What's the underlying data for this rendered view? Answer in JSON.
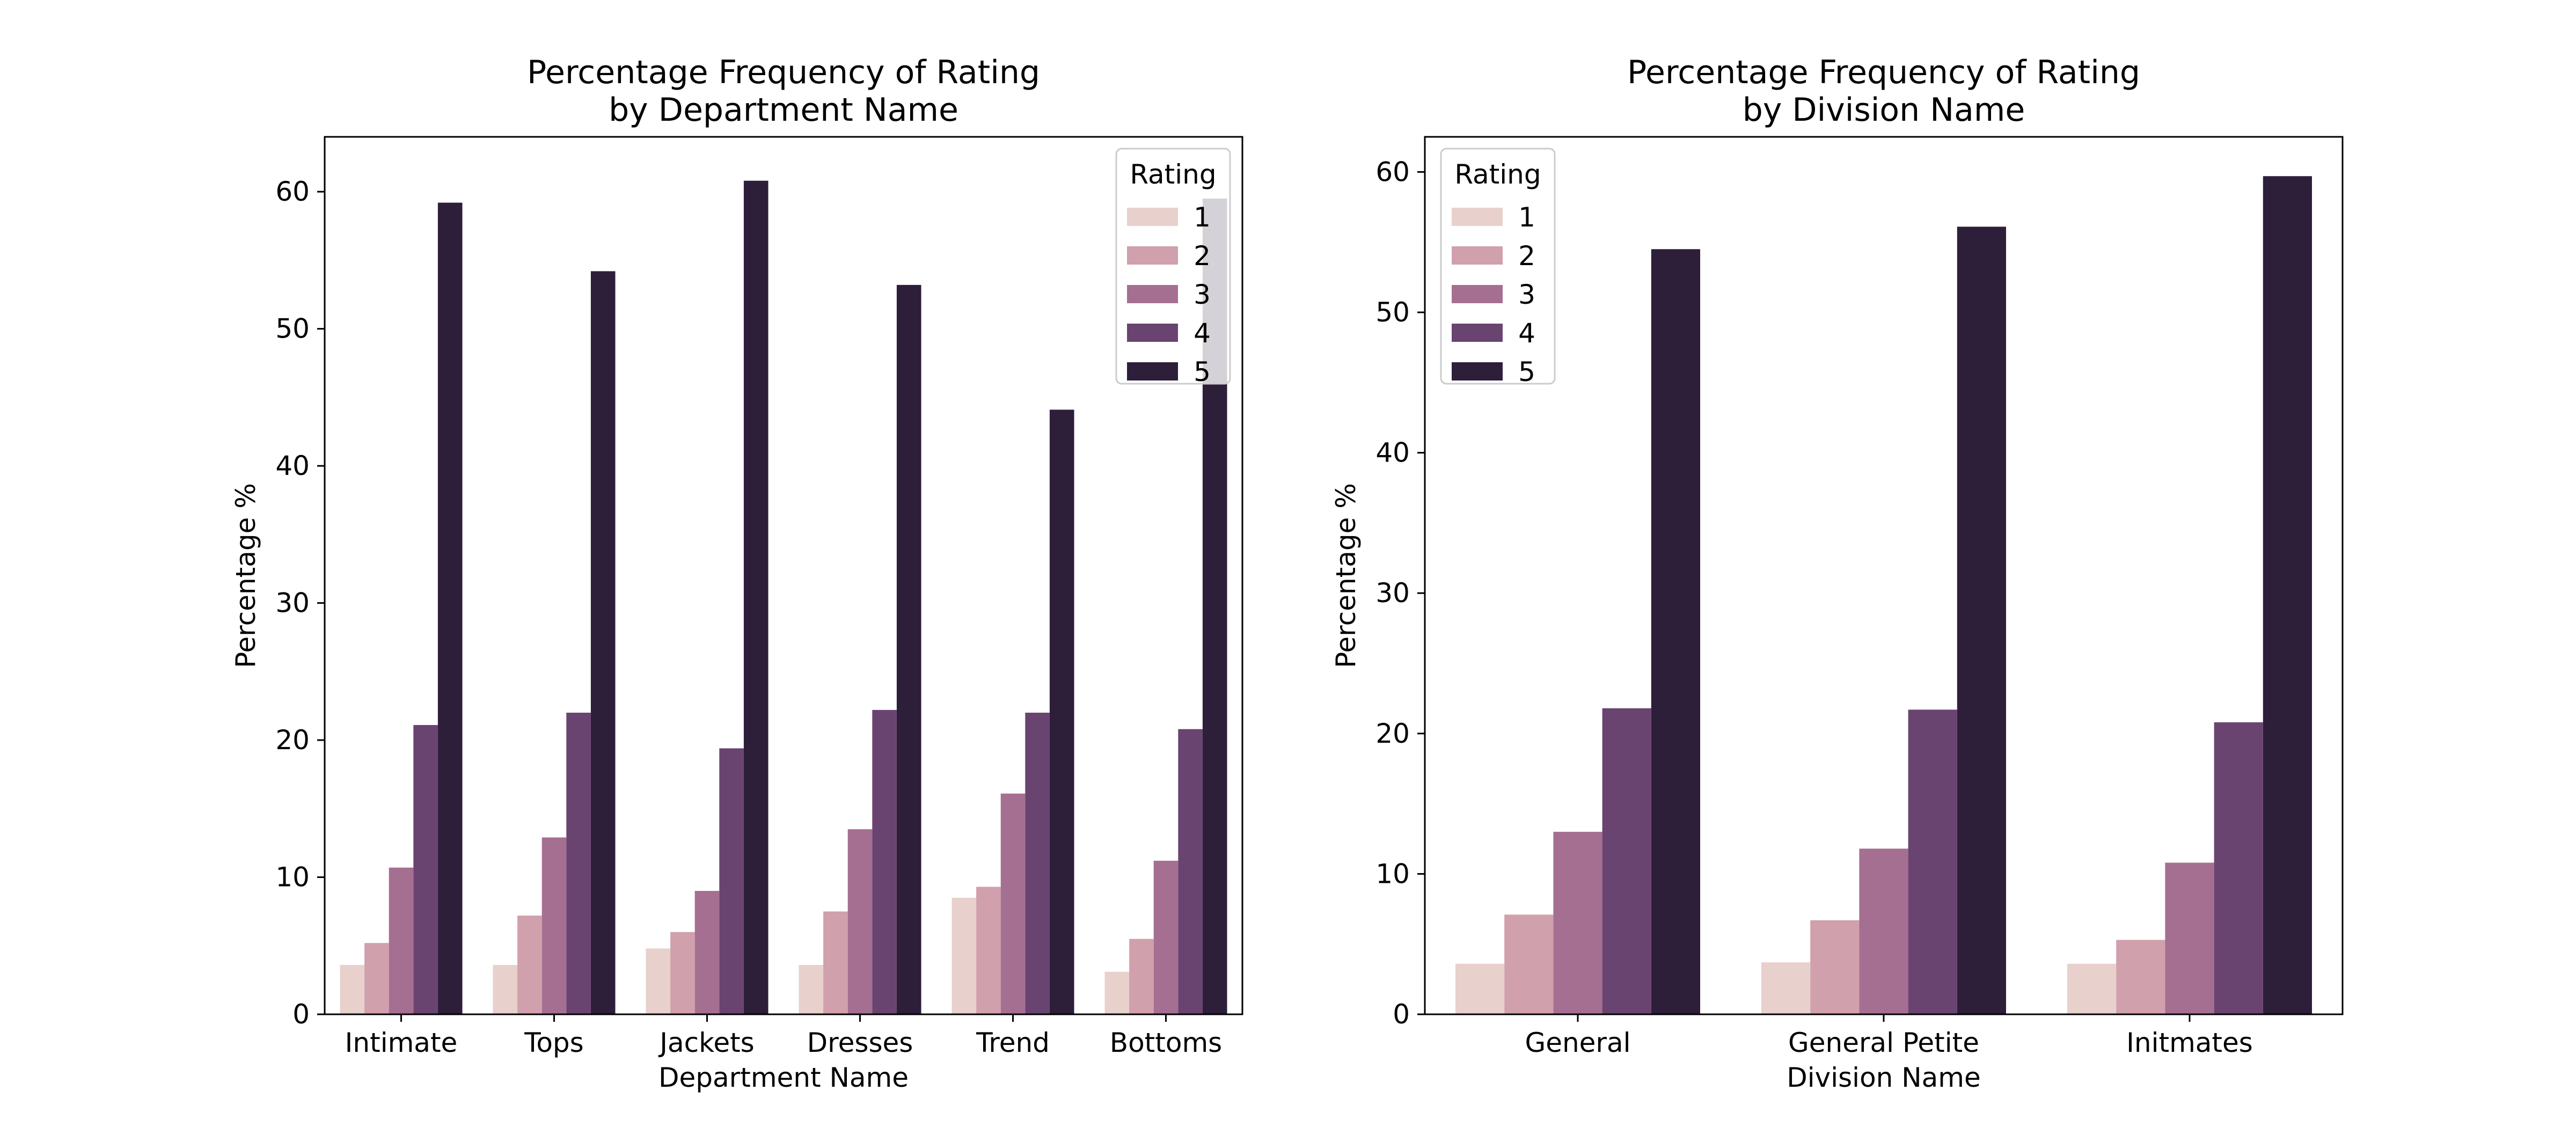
{
  "chart_data": [
    {
      "type": "bar",
      "title": "Percentage Frequency of Rating\nby Department Name",
      "xlabel": "Department Name",
      "ylabel": "Percentage %",
      "ylim": [
        0,
        64
      ],
      "yticks": [
        0,
        10,
        20,
        30,
        40,
        50,
        60
      ],
      "categories": [
        "Intimate",
        "Tops",
        "Jackets",
        "Dresses",
        "Trend",
        "Bottoms"
      ],
      "legend": {
        "title": "Rating",
        "placement": "top-right"
      },
      "series": [
        {
          "name": "1",
          "color": "#e8d0cc",
          "values": [
            3.6,
            3.6,
            4.8,
            3.6,
            8.5,
            3.1
          ]
        },
        {
          "name": "2",
          "color": "#d0a0ac",
          "values": [
            5.2,
            7.2,
            6.0,
            7.5,
            9.3,
            5.5
          ]
        },
        {
          "name": "3",
          "color": "#a56f91",
          "values": [
            10.7,
            12.9,
            9.0,
            13.5,
            16.1,
            11.2
          ]
        },
        {
          "name": "4",
          "color": "#6a4470",
          "values": [
            21.1,
            22.0,
            19.4,
            22.2,
            22.0,
            20.8
          ]
        },
        {
          "name": "5",
          "color": "#2d1e3a",
          "values": [
            59.2,
            54.2,
            60.8,
            53.2,
            44.1,
            59.5
          ]
        }
      ]
    },
    {
      "type": "bar",
      "title": "Percentage Frequency of Rating\nby Division Name",
      "xlabel": "Division Name",
      "ylabel": "Percentage %",
      "ylim": [
        0,
        62.5
      ],
      "yticks": [
        0,
        10,
        20,
        30,
        40,
        50,
        60
      ],
      "categories": [
        "General",
        "General Petite",
        "Initmates"
      ],
      "legend": {
        "title": "Rating",
        "placement": "top-left"
      },
      "series": [
        {
          "name": "1",
          "color": "#e8d0cc",
          "values": [
            3.6,
            3.7,
            3.6
          ]
        },
        {
          "name": "2",
          "color": "#d0a0ac",
          "values": [
            7.1,
            6.7,
            5.3
          ]
        },
        {
          "name": "3",
          "color": "#a56f91",
          "values": [
            13.0,
            11.8,
            10.8
          ]
        },
        {
          "name": "4",
          "color": "#6a4470",
          "values": [
            21.8,
            21.7,
            20.8
          ]
        },
        {
          "name": "5",
          "color": "#2d1e3a",
          "values": [
            54.5,
            56.1,
            59.7
          ]
        }
      ]
    }
  ]
}
